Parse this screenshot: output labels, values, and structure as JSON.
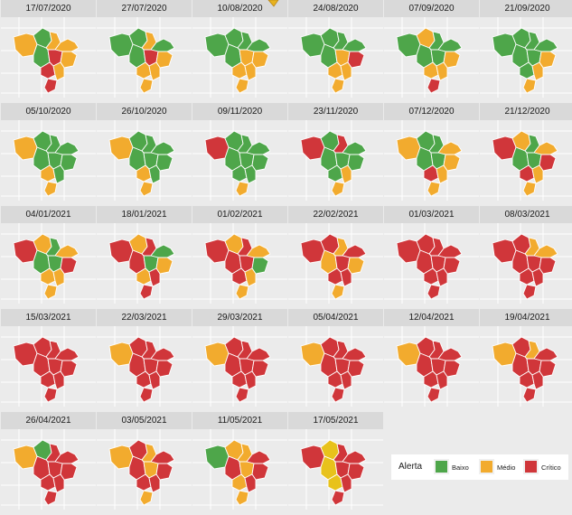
{
  "chart_data": {
    "type": "choropleth-small-multiples",
    "legend": {
      "title": "Alerta",
      "placement": "bottom-right",
      "items": [
        {
          "key": "baixo",
          "label": "Baixo",
          "color": "#4ea64a"
        },
        {
          "key": "medio",
          "label": "Médio",
          "color": "#f2ab2e"
        },
        {
          "key": "critico",
          "label": "Crítico",
          "color": "#d0363a"
        }
      ]
    },
    "region_color_yellow_last": "#e8c21b",
    "panels": [
      {
        "date": "17/07/2020",
        "levels": [
          "medio",
          "baixo",
          "medio",
          "medio",
          "baixo",
          "critico",
          "medio",
          "critico",
          "medio",
          "critico"
        ]
      },
      {
        "date": "27/07/2020",
        "levels": [
          "baixo",
          "baixo",
          "medio",
          "baixo",
          "baixo",
          "critico",
          "medio",
          "medio",
          "medio",
          "medio"
        ]
      },
      {
        "date": "10/08/2020",
        "levels": [
          "baixo",
          "baixo",
          "baixo",
          "baixo",
          "baixo",
          "medio",
          "medio",
          "medio",
          "medio",
          "medio"
        ]
      },
      {
        "date": "24/08/2020",
        "levels": [
          "baixo",
          "baixo",
          "baixo",
          "baixo",
          "baixo",
          "medio",
          "critico",
          "medio",
          "medio",
          "medio"
        ]
      },
      {
        "date": "07/09/2020",
        "levels": [
          "baixo",
          "medio",
          "baixo",
          "baixo",
          "baixo",
          "baixo",
          "medio",
          "medio",
          "medio",
          "critico"
        ]
      },
      {
        "date": "21/09/2020",
        "levels": [
          "baixo",
          "baixo",
          "baixo",
          "baixo",
          "baixo",
          "baixo",
          "medio",
          "baixo",
          "medio",
          "medio"
        ]
      },
      {
        "date": "05/10/2020",
        "levels": [
          "medio",
          "baixo",
          "baixo",
          "baixo",
          "baixo",
          "baixo",
          "baixo",
          "medio",
          "baixo",
          "medio"
        ]
      },
      {
        "date": "26/10/2020",
        "levels": [
          "medio",
          "baixo",
          "baixo",
          "baixo",
          "baixo",
          "baixo",
          "baixo",
          "medio",
          "baixo",
          "medio"
        ]
      },
      {
        "date": "09/11/2020",
        "levels": [
          "critico",
          "baixo",
          "baixo",
          "baixo",
          "baixo",
          "baixo",
          "baixo",
          "baixo",
          "baixo",
          "medio"
        ]
      },
      {
        "date": "23/11/2020",
        "levels": [
          "critico",
          "baixo",
          "critico",
          "baixo",
          "baixo",
          "baixo",
          "baixo",
          "baixo",
          "medio",
          "medio"
        ]
      },
      {
        "date": "07/12/2020",
        "levels": [
          "medio",
          "baixo",
          "baixo",
          "medio",
          "baixo",
          "baixo",
          "medio",
          "critico",
          "medio",
          "medio"
        ]
      },
      {
        "date": "21/12/2020",
        "levels": [
          "critico",
          "medio",
          "baixo",
          "medio",
          "baixo",
          "baixo",
          "critico",
          "critico",
          "medio",
          "medio"
        ]
      },
      {
        "date": "04/01/2021",
        "levels": [
          "critico",
          "medio",
          "baixo",
          "medio",
          "baixo",
          "baixo",
          "critico",
          "medio",
          "medio",
          "medio"
        ]
      },
      {
        "date": "18/01/2021",
        "levels": [
          "critico",
          "medio",
          "critico",
          "baixo",
          "critico",
          "baixo",
          "medio",
          "medio",
          "critico",
          "critico"
        ]
      },
      {
        "date": "01/02/2021",
        "levels": [
          "critico",
          "medio",
          "critico",
          "medio",
          "critico",
          "critico",
          "baixo",
          "critico",
          "medio",
          "medio"
        ]
      },
      {
        "date": "22/02/2021",
        "levels": [
          "critico",
          "critico",
          "medio",
          "critico",
          "medio",
          "critico",
          "medio",
          "critico",
          "critico",
          "medio"
        ]
      },
      {
        "date": "01/03/2021",
        "levels": [
          "critico",
          "critico",
          "critico",
          "critico",
          "critico",
          "critico",
          "critico",
          "critico",
          "critico",
          "critico"
        ]
      },
      {
        "date": "08/03/2021",
        "levels": [
          "critico",
          "critico",
          "medio",
          "medio",
          "critico",
          "critico",
          "critico",
          "critico",
          "critico",
          "critico"
        ]
      },
      {
        "date": "15/03/2021",
        "levels": [
          "critico",
          "critico",
          "critico",
          "critico",
          "critico",
          "critico",
          "critico",
          "critico",
          "critico",
          "critico"
        ]
      },
      {
        "date": "22/03/2021",
        "levels": [
          "medio",
          "critico",
          "critico",
          "critico",
          "critico",
          "critico",
          "critico",
          "critico",
          "critico",
          "critico"
        ]
      },
      {
        "date": "29/03/2021",
        "levels": [
          "medio",
          "critico",
          "critico",
          "critico",
          "critico",
          "critico",
          "critico",
          "critico",
          "critico",
          "critico"
        ]
      },
      {
        "date": "05/04/2021",
        "levels": [
          "medio",
          "critico",
          "critico",
          "critico",
          "critico",
          "critico",
          "critico",
          "critico",
          "critico",
          "critico"
        ]
      },
      {
        "date": "12/04/2021",
        "levels": [
          "medio",
          "critico",
          "critico",
          "critico",
          "critico",
          "critico",
          "critico",
          "critico",
          "critico",
          "critico"
        ]
      },
      {
        "date": "19/04/2021",
        "levels": [
          "medio",
          "critico",
          "medio",
          "critico",
          "critico",
          "critico",
          "critico",
          "critico",
          "critico",
          "critico"
        ]
      },
      {
        "date": "26/04/2021",
        "levels": [
          "medio",
          "baixo",
          "critico",
          "critico",
          "critico",
          "critico",
          "critico",
          "critico",
          "critico",
          "critico"
        ]
      },
      {
        "date": "03/05/2021",
        "levels": [
          "medio",
          "critico",
          "medio",
          "critico",
          "critico",
          "medio",
          "critico",
          "critico",
          "critico",
          "medio"
        ]
      },
      {
        "date": "11/05/2021",
        "levels": [
          "baixo",
          "medio",
          "medio",
          "critico",
          "critico",
          "medio",
          "critico",
          "medio",
          "critico",
          "medio"
        ]
      },
      {
        "date": "17/05/2021",
        "levels": [
          "critico",
          "amarelo",
          "critico",
          "critico",
          "amarelo",
          "critico",
          "critico",
          "amarelo",
          "critico",
          "critico"
        ]
      }
    ]
  }
}
